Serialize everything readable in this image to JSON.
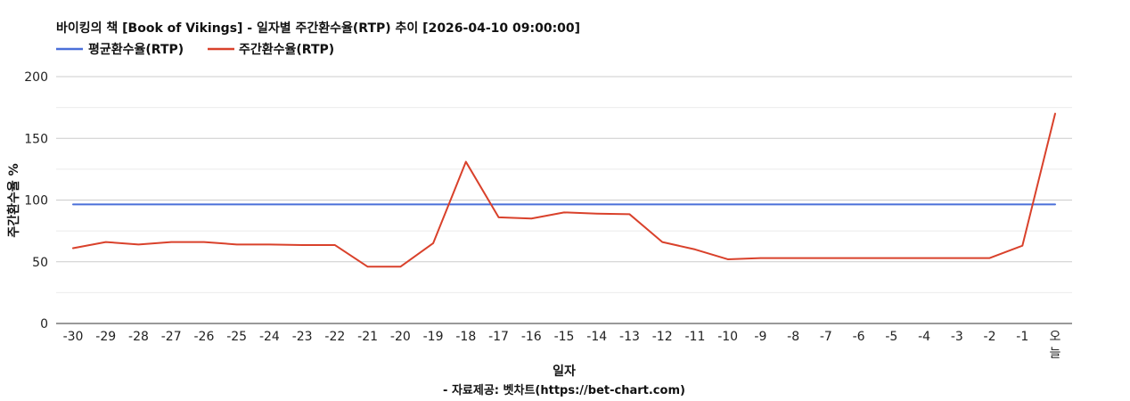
{
  "chart_data": {
    "type": "line",
    "title": "바이킹의 책 [Book of Vikings] - 일자별 주간환수율(RTP) 추이 [2026-04-10 09:00:00]",
    "xlabel": "일자",
    "ylabel": "주간환수율 %",
    "source": "- 자료제공: 벳차트(https://bet-chart.com)",
    "ylim": [
      0,
      200
    ],
    "yticks": [
      "0",
      "50",
      "100",
      "150",
      "200"
    ],
    "grid": true,
    "legend_position": "top-left",
    "categories": [
      "-30",
      "-29",
      "-28",
      "-27",
      "-26",
      "-25",
      "-24",
      "-23",
      "-22",
      "-21",
      "-20",
      "-19",
      "-18",
      "-17",
      "-16",
      "-15",
      "-14",
      "-13",
      "-12",
      "-11",
      "-10",
      "-9",
      "-8",
      "-7",
      "-6",
      "-5",
      "-4",
      "-3",
      "-2",
      "-1",
      "오늘"
    ],
    "series": [
      {
        "name": "평균환수율(RTP)",
        "color": "#4a6fd9",
        "values": [
          96.5,
          96.5,
          96.5,
          96.5,
          96.5,
          96.5,
          96.5,
          96.5,
          96.5,
          96.5,
          96.5,
          96.5,
          96.5,
          96.5,
          96.5,
          96.5,
          96.5,
          96.5,
          96.5,
          96.5,
          96.5,
          96.5,
          96.5,
          96.5,
          96.5,
          96.5,
          96.5,
          96.5,
          96.5,
          96.5,
          96.5
        ]
      },
      {
        "name": "주간환수율(RTP)",
        "color": "#d9412b",
        "values": [
          61,
          66,
          64,
          66,
          66,
          64,
          64,
          63.5,
          63.5,
          46,
          46,
          65,
          131,
          86,
          85,
          90,
          89,
          88.5,
          66,
          60,
          52,
          53,
          53,
          53,
          53,
          53,
          53,
          53,
          53,
          63,
          170
        ]
      }
    ]
  }
}
